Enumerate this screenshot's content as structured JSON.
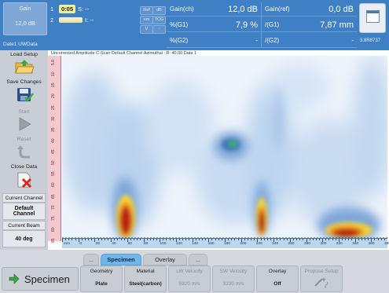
{
  "topbar": {
    "gain_box": {
      "label": "Gain",
      "value": "12,0 dB"
    },
    "gate1": {
      "number": "1",
      "value": "0:05",
      "suffix": "S: --"
    },
    "gate2": {
      "number": "2",
      "suffix": "I: --"
    },
    "buttons": {
      "ref": "Ref",
      "db": "dB",
      "um": "um",
      "tcg": "TCG",
      "v": "V",
      "minus": "-"
    },
    "status_label": "Date1 UWData",
    "readouts": {
      "gain_ch_label": "Gain(ch)",
      "gain_ch_value": "12,0 dB",
      "gain_ref_label": "Gain(ref)",
      "gain_ref_value": "0,0 dB",
      "pg1_label": "%(G1)",
      "pg1_value": "7,9 %",
      "ig1_label": "/(G1)",
      "ig1_value": "7,87 mm",
      "pg2_label": "%(G2)",
      "pg2_value": "-",
      "ig2_label": "/(G2)",
      "ig2_value": "-"
    },
    "version": "3.8R8737"
  },
  "left_panel": {
    "load_setup": "Load Setup",
    "save_changes": "Save Changes",
    "start": "Start",
    "reset": "Reset",
    "close_data": "Close Data",
    "current_channel_label": "Current Channel",
    "current_channel_value": "Default Channel",
    "current_beam_label": "Current Beam",
    "current_beam_value": "40 deg"
  },
  "plot": {
    "title": "Uncorrected Amplitude C-Scan Default Channel Azimuthal : R: 40.00 Data 1",
    "ruler_ticks": [
      "5.0",
      "10",
      "15",
      "20",
      "25",
      "30",
      "35",
      "40",
      "45",
      "50",
      "55",
      "60",
      "65",
      "70",
      "75",
      "80",
      "85"
    ],
    "x_ticks": [
      "mm",
      "0",
      "20",
      "40",
      "60",
      "80",
      "100",
      "120",
      "140",
      "160",
      "180",
      "200",
      "220",
      "240",
      "260",
      "280",
      "300",
      "320",
      "340",
      "360",
      "380"
    ]
  },
  "bottom": {
    "tabs": [
      "...",
      "Specimen",
      "Overlay",
      "..."
    ],
    "active_tab": "Specimen",
    "specimen_button": "Specimen",
    "geometry_label": "Geometry",
    "geometry_value": "Plate",
    "material_label": "Material",
    "material_value": "Steel(carbon)",
    "lw_label": "LW Velocity",
    "lw_value": "5920 m/s",
    "sw_label": "SW Velocity",
    "sw_value": "3230 m/s",
    "overlay_label": "Overlay",
    "overlay_value": "Off",
    "propose_label": "Propose Setup"
  },
  "colors": {
    "topbar": "#3f7fc4",
    "readout_text": "#ffffff",
    "active_tab": "#6fb7e8",
    "heat_high": "#b31e12",
    "heat_mid": "#f5d31c",
    "heat_low": "#dfeaf7"
  }
}
